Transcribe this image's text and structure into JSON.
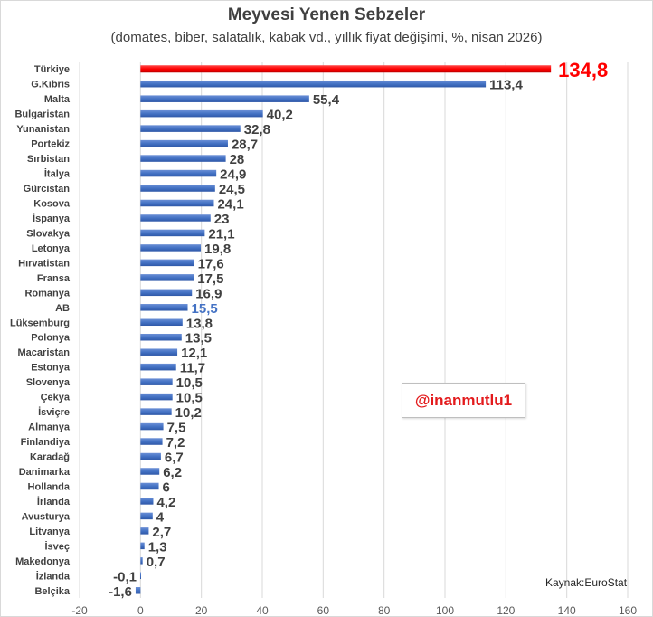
{
  "chart_data": {
    "type": "bar",
    "orientation": "horizontal",
    "title": "Meyvesi Yenen Sebzeler",
    "subtitle": "(domates, biber, salatalık, kabak vd., yıllık fiyat değişimi, %, nisan 2026)",
    "categories": [
      "Türkiye",
      "G.Kıbrıs",
      "Malta",
      "Bulgaristan",
      "Yunanistan",
      "Portekiz",
      "Sırbistan",
      "İtalya",
      "Gürcistan",
      "Kosova",
      "İspanya",
      "Slovakya",
      "Letonya",
      "Hırvatistan",
      "Fransa",
      "Romanya",
      "AB",
      "Lüksemburg",
      "Polonya",
      "Macaristan",
      "Estonya",
      "Slovenya",
      "Çekya",
      "İsviçre",
      "Almanya",
      "Finlandiya",
      "Karadağ",
      "Danimarka",
      "Hollanda",
      "İrlanda",
      "Avusturya",
      "Litvanya",
      "İsveç",
      "Makedonya",
      "İzlanda",
      "Belçika"
    ],
    "values": [
      134.8,
      113.4,
      55.4,
      40.2,
      32.8,
      28.7,
      28,
      24.9,
      24.5,
      24.1,
      23,
      21.1,
      19.8,
      17.6,
      17.5,
      16.9,
      15.5,
      13.8,
      13.5,
      12.1,
      11.7,
      10.5,
      10.5,
      10.2,
      7.5,
      7.2,
      6.7,
      6.2,
      6,
      4.2,
      4,
      2.7,
      1.3,
      0.7,
      -0.1,
      -1.6
    ],
    "value_labels": [
      "134,8",
      "113,4",
      "55,4",
      "40,2",
      "32,8",
      "28,7",
      "28",
      "24,9",
      "24,5",
      "24,1",
      "23",
      "21,1",
      "19,8",
      "17,6",
      "17,5",
      "16,9",
      "15,5",
      "13,8",
      "13,5",
      "12,1",
      "11,7",
      "10,5",
      "10,5",
      "10,2",
      "7,5",
      "7,2",
      "6,7",
      "6,2",
      "6",
      "4,2",
      "4",
      "2,7",
      "1,3",
      "0,7",
      "-0,1",
      "-1,6"
    ],
    "highlight": {
      "Türkiye": "#ff0000",
      "AB": "#4472c4"
    },
    "xlim": [
      -20,
      160
    ],
    "xticks": [
      -20,
      0,
      20,
      40,
      60,
      80,
      100,
      120,
      140,
      160
    ],
    "xtick_labels": [
      "-20",
      "0",
      "20",
      "40",
      "60",
      "80",
      "100",
      "120",
      "140",
      "160"
    ],
    "grid": "vertical",
    "legend": "none",
    "bar_color": "#4472c4",
    "highlight_color": "#ff0000",
    "label_color": "#404040"
  },
  "annotations": {
    "handle": "@inanmutlu1",
    "source": "Kaynak:EuroStat"
  }
}
